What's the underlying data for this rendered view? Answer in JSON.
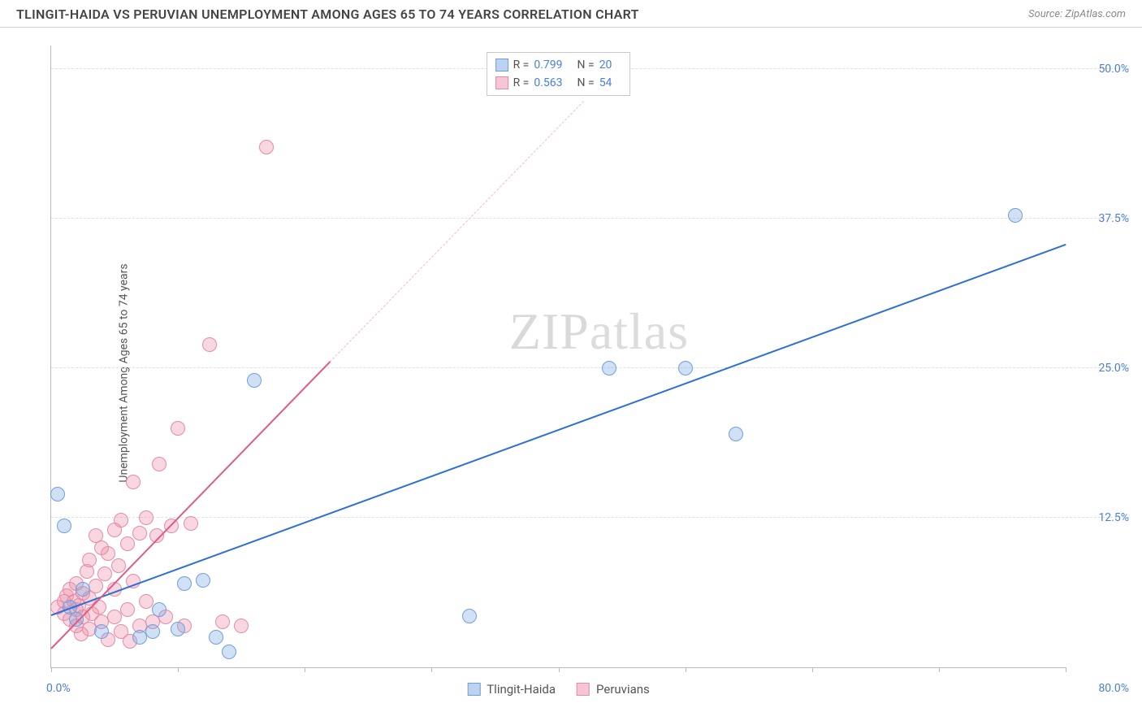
{
  "header": {
    "title": "TLINGIT-HAIDA VS PERUVIAN UNEMPLOYMENT AMONG AGES 65 TO 74 YEARS CORRELATION CHART",
    "source": "Source: ZipAtlas.com"
  },
  "watermark": {
    "bold": "ZIP",
    "light": "atlas"
  },
  "ylabel": "Unemployment Among Ages 65 to 74 years",
  "axes": {
    "xmin": 0,
    "xmax": 80,
    "ymin": 0,
    "ymax": 52,
    "x_left_label": "0.0%",
    "x_right_label": "80.0%",
    "y_ticks": [
      {
        "v": 12.5,
        "label": "12.5%"
      },
      {
        "v": 25.0,
        "label": "25.0%"
      },
      {
        "v": 37.5,
        "label": "37.5%"
      },
      {
        "v": 50.0,
        "label": "50.0%"
      }
    ],
    "x_tick_positions": [
      0,
      10,
      20,
      30,
      40,
      50,
      60,
      70,
      80
    ],
    "grid_color": "#e0e0e0",
    "axis_color": "#bbbbbb",
    "label_color": "#4a7fd8"
  },
  "series": {
    "a": {
      "name": "Tlingit-Haida",
      "color_fill": "rgba(120,165,225,0.35)",
      "color_stroke": "#6f9fe0",
      "swatch_fill": "#bcd3f0",
      "swatch_border": "#6f9fe0",
      "marker_r": 9,
      "R": "0.799",
      "N": "20",
      "trend": {
        "x1": 0,
        "y1": 4.3,
        "x2": 80,
        "y2": 35.3,
        "color": "#2e6fd6",
        "width": 2
      },
      "points": [
        [
          0.5,
          14.5
        ],
        [
          1,
          11.8
        ],
        [
          1.5,
          5
        ],
        [
          2,
          4
        ],
        [
          2.5,
          6.5
        ],
        [
          4,
          3
        ],
        [
          7,
          2.5
        ],
        [
          8,
          3
        ],
        [
          8.5,
          4.8
        ],
        [
          10,
          3.2
        ],
        [
          10.5,
          7
        ],
        [
          12,
          7.3
        ],
        [
          13,
          2.5
        ],
        [
          14,
          1.3
        ],
        [
          16,
          24
        ],
        [
          33,
          4.3
        ],
        [
          44,
          25
        ],
        [
          50,
          25
        ],
        [
          54,
          19.5
        ],
        [
          76,
          37.8
        ]
      ]
    },
    "b": {
      "name": "Peruvians",
      "color_fill": "rgba(235,140,165,0.35)",
      "color_stroke": "#e88aa6",
      "swatch_fill": "#f6c6d4",
      "swatch_border": "#e88aa6",
      "marker_r": 9,
      "R": "0.563",
      "N": "54",
      "trend_solid": {
        "x1": 0,
        "y1": 1.5,
        "x2": 22,
        "y2": 25.5,
        "color": "#e15b86",
        "width": 2
      },
      "trend_dash": {
        "x1": 22,
        "y1": 25.5,
        "x2": 42,
        "y2": 47.3,
        "color": "#f3b9c9"
      },
      "points": [
        [
          0.5,
          5
        ],
        [
          1,
          4.5
        ],
        [
          1,
          5.5
        ],
        [
          1.2,
          6
        ],
        [
          1.5,
          4
        ],
        [
          1.5,
          6.5
        ],
        [
          1.8,
          5.5
        ],
        [
          2,
          3.5
        ],
        [
          2,
          4.8
        ],
        [
          2,
          7
        ],
        [
          2.2,
          5.2
        ],
        [
          2.4,
          2.8
        ],
        [
          2.5,
          4.2
        ],
        [
          2.5,
          6.2
        ],
        [
          2.8,
          8
        ],
        [
          3,
          3.2
        ],
        [
          3,
          5.8
        ],
        [
          3,
          9
        ],
        [
          3.2,
          4.5
        ],
        [
          3.5,
          6.8
        ],
        [
          3.5,
          11
        ],
        [
          3.8,
          5
        ],
        [
          4,
          3.8
        ],
        [
          4,
          10
        ],
        [
          4.2,
          7.8
        ],
        [
          4.5,
          2.3
        ],
        [
          4.5,
          9.5
        ],
        [
          5,
          4.2
        ],
        [
          5,
          6.5
        ],
        [
          5,
          11.5
        ],
        [
          5.3,
          8.5
        ],
        [
          5.5,
          3
        ],
        [
          5.5,
          12.3
        ],
        [
          6,
          4.8
        ],
        [
          6,
          10.3
        ],
        [
          6.2,
          2.2
        ],
        [
          6.5,
          7.2
        ],
        [
          6.5,
          15.5
        ],
        [
          7,
          3.5
        ],
        [
          7,
          11.2
        ],
        [
          7.5,
          5.5
        ],
        [
          7.5,
          12.5
        ],
        [
          8,
          3.8
        ],
        [
          8.3,
          11
        ],
        [
          8.5,
          17
        ],
        [
          9,
          4.2
        ],
        [
          9.5,
          11.8
        ],
        [
          10,
          20
        ],
        [
          10.5,
          3.5
        ],
        [
          11,
          12
        ],
        [
          12.5,
          27
        ],
        [
          13.5,
          3.8
        ],
        [
          15,
          3.5
        ],
        [
          17,
          43.5
        ]
      ]
    }
  },
  "legend_top": {
    "r_label": "R =",
    "n_label": "N ="
  }
}
